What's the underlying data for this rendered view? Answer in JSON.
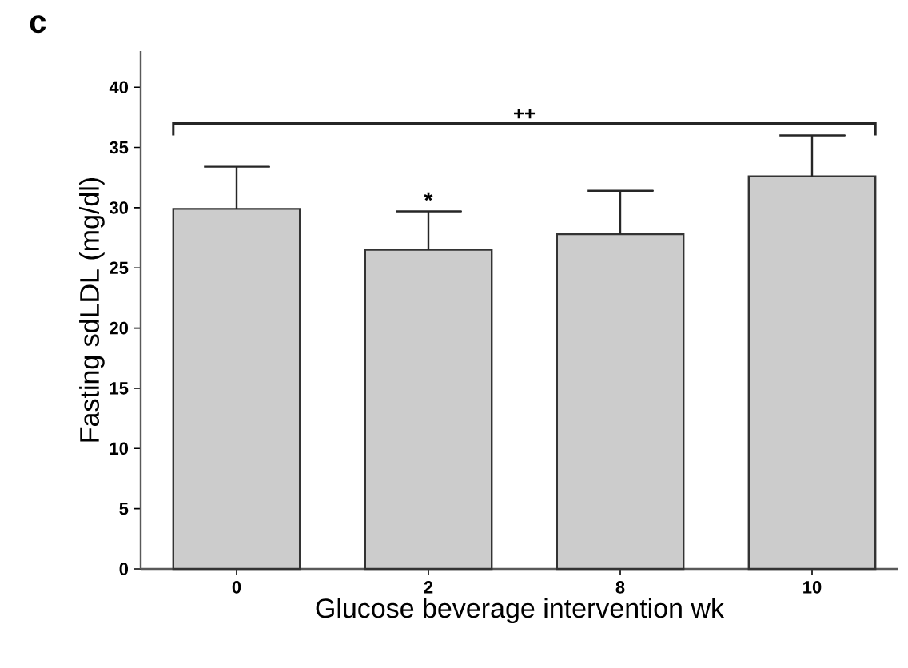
{
  "chart_data": {
    "type": "bar",
    "xlabel": "Glucose beverage intervention wk",
    "ylabel": "Fasting sdLDL (mg/dl)",
    "categories": [
      "0",
      "2",
      "8",
      "10"
    ],
    "values": [
      29.9,
      26.5,
      27.8,
      32.6
    ],
    "errors": [
      [
        29.9,
        33.4
      ],
      [
        26.5,
        29.7
      ],
      [
        27.8,
        31.4
      ],
      [
        32.6,
        36.0
      ]
    ],
    "color": "#cccccc",
    "ylim": [
      0,
      43
    ],
    "yticks": [
      0,
      5,
      10,
      15,
      20,
      25,
      30,
      35,
      40
    ],
    "annotations": [
      "c",
      "*",
      "++"
    ]
  }
}
